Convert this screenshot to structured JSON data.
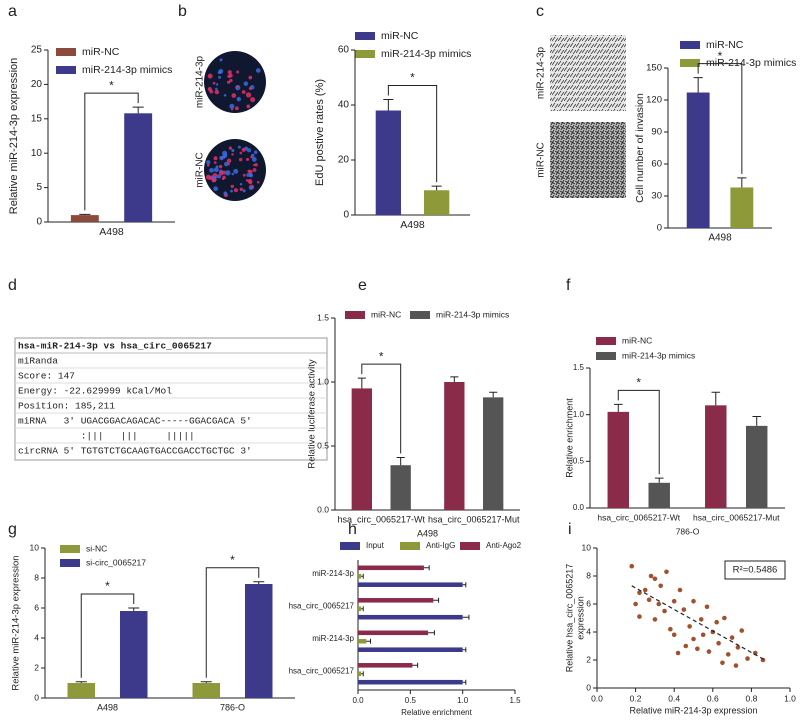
{
  "chart_data": [
    {
      "panel": "a",
      "type": "bar",
      "ylabel": "Relative miR-214-3p expression",
      "categories": [
        "A498"
      ],
      "series": [
        {
          "name": "miR-NC",
          "color": "#8b4a3a",
          "values": [
            1.0
          ],
          "errors": [
            0.1
          ]
        },
        {
          "name": "miR-214-3p mimics",
          "color": "#3d3a8c",
          "values": [
            15.8
          ],
          "errors": [
            0.9
          ]
        }
      ],
      "ylim": [
        0,
        25
      ],
      "yticks": [
        0,
        5,
        10,
        15,
        20,
        25
      ],
      "annotations": [
        "*"
      ]
    },
    {
      "panel": "b",
      "type": "bar",
      "image_labels": [
        "miR-214-3p",
        "miR-NC"
      ],
      "ylabel": "EdU postive rates (%)",
      "categories": [
        "A498"
      ],
      "series": [
        {
          "name": "miR-NC",
          "color": "#3d3a8c",
          "values": [
            38
          ],
          "errors": [
            4
          ]
        },
        {
          "name": "miR-214-3p mimics",
          "color": "#8e9a3a",
          "values": [
            9
          ],
          "errors": [
            1.5
          ]
        }
      ],
      "ylim": [
        0,
        60
      ],
      "yticks": [
        0,
        20,
        40,
        60
      ],
      "annotations": [
        "*"
      ]
    },
    {
      "panel": "c",
      "type": "bar",
      "image_labels": [
        "miR-214-3p",
        "miR-NC"
      ],
      "ylabel": "Cell number of invasion",
      "categories": [
        "A498"
      ],
      "series": [
        {
          "name": "miR-NC",
          "color": "#3d3a8c",
          "values": [
            127
          ],
          "errors": [
            14
          ]
        },
        {
          "name": "miR-214-3p mimics",
          "color": "#8e9a3a",
          "values": [
            38
          ],
          "errors": [
            9
          ]
        }
      ],
      "ylim": [
        0,
        150
      ],
      "yticks": [
        0,
        30,
        60,
        90,
        120,
        150
      ],
      "annotations": [
        "*"
      ]
    },
    {
      "panel": "e",
      "type": "bar",
      "ylabel": "Relative luciferase activity",
      "xlabel": "A498",
      "categories": [
        "hsa_circ_0065217-Wt",
        "hsa_circ_0065217-Mut"
      ],
      "series": [
        {
          "name": "miR-NC",
          "color": "#8b2b4a",
          "values": [
            0.95,
            1.0
          ],
          "errors": [
            0.08,
            0.04
          ]
        },
        {
          "name": "miR-214-3p mimics",
          "color": "#555555",
          "values": [
            0.35,
            0.88
          ],
          "errors": [
            0.06,
            0.04
          ]
        }
      ],
      "ylim": [
        0,
        1.5
      ],
      "yticks": [
        {
          "value": 0,
          "label": "0.0"
        },
        0.5,
        {
          "value": 1,
          "label": "1.0"
        },
        1.5
      ],
      "annotations": [
        "*"
      ]
    },
    {
      "panel": "f",
      "type": "bar",
      "ylabel": "Relative enrichment",
      "xlabel": "786-O",
      "categories": [
        "hsa_circ_0065217-Wt",
        "hsa_circ_0065217-Mut"
      ],
      "series": [
        {
          "name": "miR-NC",
          "color": "#8b2b4a",
          "values": [
            1.03,
            1.1
          ],
          "errors": [
            0.08,
            0.14
          ]
        },
        {
          "name": "miR-214-3p mimics",
          "color": "#555555",
          "values": [
            0.27,
            0.88
          ],
          "errors": [
            0.05,
            0.1
          ]
        }
      ],
      "ylim": [
        0,
        1.5
      ],
      "yticks": [
        {
          "value": 0,
          "label": "0.0"
        },
        0.5,
        {
          "value": 1,
          "label": "1.0"
        },
        1.5
      ],
      "annotations": [
        "*"
      ]
    },
    {
      "panel": "g",
      "type": "bar",
      "ylabel": "Relative miR-214-3p expression",
      "categories": [
        "A498",
        "786-O"
      ],
      "series": [
        {
          "name": "si-NC",
          "color": "#8e9a3a",
          "values": [
            1.0,
            1.0
          ],
          "errors": [
            0.08,
            0.08
          ]
        },
        {
          "name": "si-circ_0065217",
          "color": "#3d3a8c",
          "values": [
            5.8,
            7.6
          ],
          "errors": [
            0.2,
            0.15
          ]
        }
      ],
      "ylim": [
        0,
        10
      ],
      "yticks": [
        0,
        2,
        4,
        6,
        8,
        10
      ],
      "annotations": [
        "*",
        "*"
      ]
    },
    {
      "panel": "h",
      "type": "hbar",
      "xlabel": "Relative enrichment",
      "categories": [
        "miR-214-3p",
        "hsa_circ_0065217",
        "miR-214-3p",
        "hsa_circ_0065217"
      ],
      "series": [
        {
          "name": "Input",
          "color": "#3d3a8c",
          "values": [
            1.0,
            1.0,
            1.0,
            1.0
          ],
          "errors": [
            0.03,
            0.06,
            0.03,
            0.03
          ]
        },
        {
          "name": "Anti-IgG",
          "color": "#8e9a3a",
          "values": [
            0.03,
            0.03,
            0.08,
            0.03
          ],
          "errors": [
            0.02,
            0.02,
            0.04,
            0.02
          ]
        },
        {
          "name": "Anti-Ago2",
          "color": "#8b2b4a",
          "values": [
            0.63,
            0.72,
            0.67,
            0.52
          ],
          "errors": [
            0.05,
            0.05,
            0.06,
            0.05
          ]
        }
      ],
      "xlim": [
        0,
        1.5
      ],
      "xticks": [
        {
          "value": 0,
          "label": "0.0"
        },
        0.5,
        {
          "value": 1,
          "label": "1.0"
        },
        1.5
      ]
    },
    {
      "panel": "i",
      "type": "scatter",
      "xlabel": "Relative miR-214-3p expression",
      "ylabel": [
        "Relative hsa_circ_0065217",
        "expression"
      ],
      "color": "#a0522d",
      "annotation": "R²=0.5486",
      "x": [
        0.18,
        0.2,
        0.22,
        0.22,
        0.25,
        0.27,
        0.28,
        0.3,
        0.3,
        0.32,
        0.33,
        0.35,
        0.36,
        0.38,
        0.4,
        0.4,
        0.42,
        0.43,
        0.45,
        0.46,
        0.48,
        0.5,
        0.5,
        0.52,
        0.54,
        0.55,
        0.57,
        0.58,
        0.6,
        0.62,
        0.63,
        0.65,
        0.66,
        0.68,
        0.7,
        0.72,
        0.73,
        0.75,
        0.78,
        0.82,
        0.86
      ],
      "y": [
        8.7,
        6.0,
        6.8,
        5.1,
        7.0,
        6.3,
        8.0,
        7.8,
        4.9,
        6.0,
        7.3,
        5.5,
        8.3,
        4.2,
        6.2,
        3.8,
        2.5,
        7.0,
        5.6,
        3.0,
        4.4,
        6.2,
        3.5,
        2.8,
        4.9,
        3.8,
        5.8,
        2.6,
        4.0,
        4.7,
        3.2,
        1.8,
        5.0,
        2.4,
        3.6,
        1.6,
        2.9,
        4.1,
        2.1,
        2.5,
        2.0
      ],
      "trendline": {
        "x": [
          0.18,
          0.87
        ],
        "y": [
          7.3,
          2.0
        ]
      },
      "xlim": [
        0,
        1
      ],
      "xticks": [
        {
          "value": 0,
          "label": "0.0"
        },
        0.2,
        0.4,
        0.6,
        0.8,
        {
          "value": 1,
          "label": "1.0"
        }
      ],
      "ylim": [
        0,
        10
      ],
      "yticks": [
        0,
        2,
        4,
        6,
        8,
        10
      ]
    }
  ],
  "panel_d": {
    "panel": "d",
    "title": "hsa-miR-214-3p vs hsa_circ_0065217",
    "lines": [
      "miRanda",
      "Score: 147",
      "Energy: -22.629999 kCal/Mol",
      "Position: 185,211",
      "miRNA   3' UGACGGACAGACAC-----GGACGACA 5'",
      "           :|||   |||     |||||",
      "circRNA 5' TGTGTCTGCAAGTGACCGACCTGCTGC 3'"
    ]
  }
}
